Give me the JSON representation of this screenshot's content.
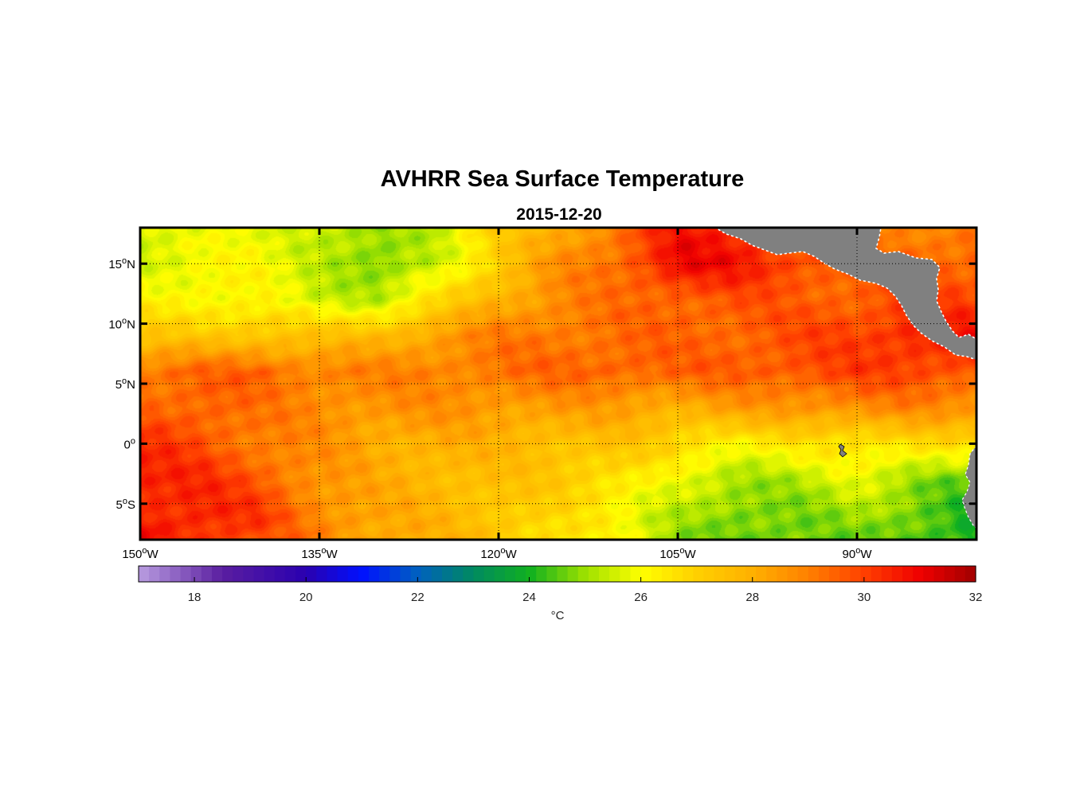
{
  "title": "AVHRR Sea Surface Temperature",
  "subtitle": "2015-12-20",
  "map": {
    "projection": "equirectangular",
    "lon_range": [
      -150,
      -80
    ],
    "lat_range": [
      -8,
      18
    ],
    "grid": "dotted",
    "land_color": "#808080",
    "lon_ticks": [
      {
        "value": -150,
        "deg": "150",
        "hemi": "W"
      },
      {
        "value": -135,
        "deg": "135",
        "hemi": "W"
      },
      {
        "value": -120,
        "deg": "120",
        "hemi": "W"
      },
      {
        "value": -105,
        "deg": "105",
        "hemi": "W"
      },
      {
        "value": -90,
        "deg": "90",
        "hemi": "W"
      }
    ],
    "lat_ticks": [
      {
        "value": 15,
        "deg": "15",
        "hemi": "N"
      },
      {
        "value": 10,
        "deg": "10",
        "hemi": "N"
      },
      {
        "value": 5,
        "deg": "5",
        "hemi": "N"
      },
      {
        "value": 0,
        "deg": "0",
        "hemi": ""
      },
      {
        "value": -5,
        "deg": "5",
        "hemi": "S"
      }
    ]
  },
  "chart_data": {
    "type": "heatmap",
    "variable": "sea surface temperature",
    "unit": "°C",
    "colorbar": {
      "min": 17,
      "max": 32,
      "ticks": [
        "18",
        "20",
        "22",
        "24",
        "26",
        "28",
        "30",
        "32"
      ],
      "label": "°C",
      "stops": [
        {
          "value": 17,
          "color": "#b99de0"
        },
        {
          "value": 18.5,
          "color": "#5a1ea0"
        },
        {
          "value": 20,
          "color": "#2a00b0"
        },
        {
          "value": 21,
          "color": "#0010ff"
        },
        {
          "value": 22,
          "color": "#0060c0"
        },
        {
          "value": 23,
          "color": "#008a60"
        },
        {
          "value": 24,
          "color": "#10b020"
        },
        {
          "value": 25,
          "color": "#9de000"
        },
        {
          "value": 26,
          "color": "#ffff00"
        },
        {
          "value": 27,
          "color": "#ffd000"
        },
        {
          "value": 28,
          "color": "#ffb000"
        },
        {
          "value": 29,
          "color": "#ff8000"
        },
        {
          "value": 30,
          "color": "#ff4000"
        },
        {
          "value": 31,
          "color": "#f00000"
        },
        {
          "value": 32,
          "color": "#a00000"
        }
      ]
    },
    "field_nodes": {
      "lon": [
        -150,
        -145,
        -140,
        -135,
        -130,
        -125,
        -120,
        -115,
        -110,
        -105,
        -100,
        -95,
        -90,
        -85,
        -80
      ],
      "lat": [
        18,
        15,
        12,
        9,
        6,
        3,
        0,
        -3,
        -6,
        -8
      ],
      "sst": [
        [
          25.5,
          25.7,
          26.0,
          25.3,
          24.9,
          25.6,
          27.0,
          28.0,
          29.3,
          30.6,
          30.4,
          29.6,
          29.0,
          29.0,
          29.0
        ],
        [
          25.8,
          25.9,
          26.1,
          25.5,
          24.6,
          25.5,
          27.2,
          28.6,
          29.4,
          31.0,
          30.7,
          30.0,
          29.4,
          29.5,
          29.5
        ],
        [
          26.1,
          26.3,
          26.0,
          25.5,
          25.4,
          26.6,
          28.0,
          28.8,
          29.2,
          29.6,
          29.7,
          29.5,
          29.6,
          30.0,
          30.0
        ],
        [
          27.2,
          27.2,
          27.5,
          27.3,
          27.7,
          28.4,
          29.0,
          29.2,
          29.3,
          29.4,
          29.5,
          29.8,
          30.0,
          30.6,
          30.6
        ],
        [
          29.2,
          29.4,
          29.5,
          29.0,
          28.9,
          29.0,
          29.2,
          29.4,
          29.6,
          29.4,
          29.6,
          29.8,
          30.0,
          30.0,
          29.8
        ],
        [
          29.4,
          29.6,
          29.1,
          28.8,
          28.6,
          28.6,
          28.5,
          28.4,
          28.3,
          28.1,
          28.3,
          28.6,
          28.8,
          28.8,
          28.6
        ],
        [
          30.3,
          29.8,
          29.1,
          28.6,
          28.1,
          28.0,
          27.8,
          27.6,
          27.4,
          26.8,
          26.3,
          26.4,
          26.6,
          26.8,
          26.5
        ],
        [
          30.6,
          30.3,
          29.7,
          28.6,
          28.0,
          27.8,
          27.5,
          27.2,
          26.7,
          25.7,
          25.1,
          25.3,
          25.7,
          25.0,
          24.6
        ],
        [
          30.5,
          30.5,
          30.1,
          28.9,
          28.2,
          27.8,
          27.4,
          26.7,
          26.1,
          25.3,
          24.6,
          24.8,
          25.1,
          24.5,
          24.1
        ],
        [
          30.9,
          30.4,
          29.7,
          29.0,
          28.2,
          27.9,
          27.4,
          26.6,
          26.0,
          25.1,
          24.5,
          24.6,
          24.8,
          24.3,
          24.0
        ]
      ]
    }
  }
}
